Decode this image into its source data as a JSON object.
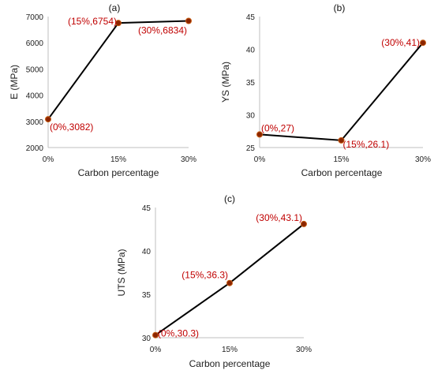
{
  "chart_data": [
    {
      "type": "line",
      "panel_label": "(a)",
      "xlabel": "Carbon percentage",
      "ylabel": "E (MPa)",
      "categories": [
        "0%",
        "15%",
        "30%"
      ],
      "x": [
        0,
        15,
        30
      ],
      "values": [
        3082,
        6754,
        6834
      ],
      "data_labels": [
        "(0%,3082)",
        "(15%,6754)",
        "(30%,6834)"
      ],
      "ylim": [
        2000,
        7000
      ],
      "yticks": [
        "2000",
        "3000",
        "4000",
        "5000",
        "6000",
        "7000"
      ],
      "grid": false
    },
    {
      "type": "line",
      "panel_label": "(b)",
      "xlabel": "Carbon percentage",
      "ylabel": "YS (MPa)",
      "categories": [
        "0%",
        "15%",
        "30%"
      ],
      "x": [
        0,
        15,
        30
      ],
      "values": [
        27,
        26.1,
        41
      ],
      "data_labels": [
        "(0%,27)",
        "(15%,26.1)",
        "(30%,41)"
      ],
      "ylim": [
        25,
        45
      ],
      "yticks": [
        "25",
        "30",
        "35",
        "40",
        "45"
      ],
      "grid": false
    },
    {
      "type": "line",
      "panel_label": "(c)",
      "xlabel": "Carbon percentage",
      "ylabel": "UTS (MPa)",
      "categories": [
        "0%",
        "15%",
        "30%"
      ],
      "x": [
        0,
        15,
        30
      ],
      "values": [
        30.3,
        36.3,
        43.1
      ],
      "data_labels": [
        "(0%,30.3)",
        "(15%,36.3)",
        "(30%,43.1)"
      ],
      "ylim": [
        30,
        45
      ],
      "yticks": [
        "30",
        "35",
        "40",
        "45"
      ],
      "grid": false
    }
  ],
  "colors": {
    "line": "#000000",
    "marker": "#8b2500",
    "label_text": "#c00000"
  }
}
